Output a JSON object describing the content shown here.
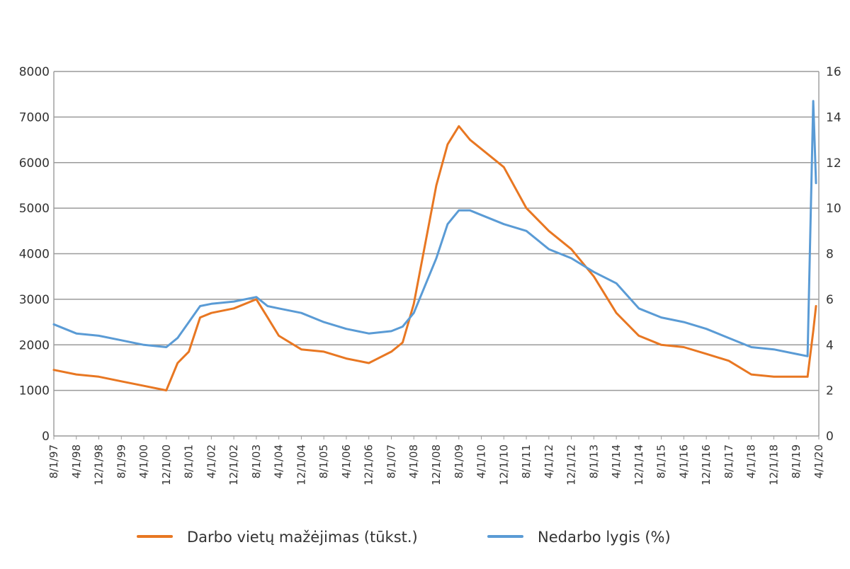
{
  "chart_data": {
    "type": "line",
    "title": "",
    "xlabel": "",
    "ylabel_left": "",
    "ylabel_right": "",
    "ylim_left": [
      0,
      8000
    ],
    "ylim_right": [
      0,
      16
    ],
    "yticks_left": [
      "0",
      "1000",
      "2000",
      "3000",
      "4000",
      "5000",
      "6000",
      "7000",
      "8000"
    ],
    "yticks_right": [
      "0",
      "2",
      "4",
      "6",
      "8",
      "10",
      "12",
      "14",
      "16"
    ],
    "xticks": [
      "8/1/97",
      "4/1/98",
      "12/1/98",
      "8/1/99",
      "4/1/00",
      "12/1/00",
      "8/1/01",
      "4/1/02",
      "12/1/02",
      "8/1/03",
      "4/1/04",
      "12/1/04",
      "8/1/05",
      "4/1/06",
      "12/1/06",
      "8/1/07",
      "4/1/08",
      "12/1/08",
      "8/1/09",
      "4/1/10",
      "12/1/10",
      "8/1/11",
      "4/1/12",
      "12/1/12",
      "8/1/13",
      "4/1/14",
      "12/1/14",
      "8/1/15",
      "4/1/16",
      "12/1/16",
      "8/1/17",
      "4/1/18",
      "12/1/18",
      "8/1/19",
      "4/1/20"
    ],
    "grid": true,
    "legend_position": "bottom",
    "series": [
      {
        "name": "Darbo vietų mažėjimas (tūkst.)",
        "axis": "left",
        "color": "#E87722",
        "x": [
          "8/1/97",
          "4/1/98",
          "12/1/98",
          "8/1/99",
          "4/1/00",
          "12/1/00",
          "4/1/01",
          "8/1/01",
          "12/1/01",
          "4/1/02",
          "12/1/02",
          "8/1/03",
          "12/1/03",
          "4/1/04",
          "12/1/04",
          "8/1/05",
          "4/1/06",
          "12/1/06",
          "8/1/07",
          "12/1/07",
          "4/1/08",
          "12/1/08",
          "4/1/09",
          "8/1/09",
          "12/1/09",
          "4/1/10",
          "12/1/10",
          "8/1/11",
          "4/1/12",
          "12/1/12",
          "8/1/13",
          "4/1/14",
          "12/1/14",
          "8/1/15",
          "4/1/16",
          "12/1/16",
          "8/1/17",
          "4/1/18",
          "12/1/18",
          "8/1/19",
          "12/1/19",
          "2/1/20",
          "3/1/20"
        ],
        "values": [
          1450,
          1350,
          1300,
          1200,
          1100,
          1000,
          1600,
          1850,
          2600,
          2700,
          2800,
          3000,
          2600,
          2200,
          1900,
          1850,
          1700,
          1600,
          1850,
          2050,
          2900,
          5500,
          6400,
          6800,
          6500,
          6300,
          5900,
          5000,
          4500,
          4100,
          3500,
          2700,
          2200,
          2000,
          1950,
          1800,
          1650,
          1350,
          1300,
          1300,
          1300,
          2300,
          2850
        ]
      },
      {
        "name": "Nedarbo lygis (%)",
        "axis": "right",
        "color": "#5A9BD5",
        "x": [
          "8/1/97",
          "4/1/98",
          "12/1/98",
          "8/1/99",
          "4/1/00",
          "12/1/00",
          "4/1/01",
          "8/1/01",
          "12/1/01",
          "4/1/02",
          "12/1/02",
          "8/1/03",
          "12/1/03",
          "4/1/04",
          "12/1/04",
          "8/1/05",
          "4/1/06",
          "12/1/06",
          "8/1/07",
          "12/1/07",
          "4/1/08",
          "12/1/08",
          "4/1/09",
          "8/1/09",
          "12/1/09",
          "4/1/10",
          "12/1/10",
          "8/1/11",
          "4/1/12",
          "12/1/12",
          "8/1/13",
          "4/1/14",
          "12/1/14",
          "8/1/15",
          "4/1/16",
          "12/1/16",
          "8/1/17",
          "4/1/18",
          "12/1/18",
          "8/1/19",
          "12/1/19",
          "2/1/20",
          "3/1/20"
        ],
        "values": [
          4.9,
          4.5,
          4.4,
          4.2,
          4.0,
          3.9,
          4.3,
          5.0,
          5.7,
          5.8,
          5.9,
          6.1,
          5.7,
          5.6,
          5.4,
          5.0,
          4.7,
          4.5,
          4.6,
          4.8,
          5.4,
          7.8,
          9.3,
          9.9,
          9.9,
          9.7,
          9.3,
          9.0,
          8.2,
          7.8,
          7.2,
          6.7,
          5.6,
          5.2,
          5.0,
          4.7,
          4.3,
          3.9,
          3.8,
          3.6,
          3.5,
          14.7,
          11.1
        ]
      }
    ]
  }
}
